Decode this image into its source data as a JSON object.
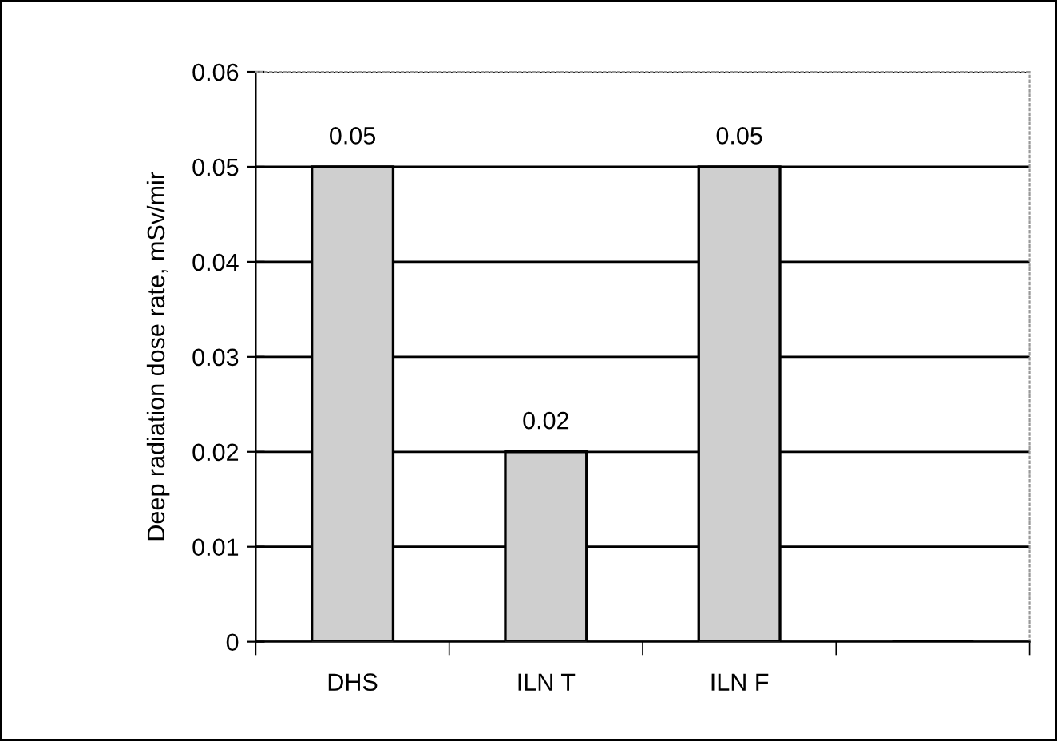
{
  "chart_data": {
    "type": "bar",
    "ylabel": "Deep radiation dose rate, mSv/mir",
    "categories": [
      "DHS",
      "ILN T",
      "ILN F",
      null
    ],
    "values": [
      0.05,
      0.02,
      0.05,
      null
    ],
    "color": "#cfcfcf",
    "ylim": [
      0,
      0.06
    ],
    "yticks": [
      {
        "value": 0,
        "label": "0"
      },
      0.01,
      0.02,
      0.03,
      0.04,
      0.05,
      0.06
    ],
    "grid": "y",
    "data_labels": true
  }
}
